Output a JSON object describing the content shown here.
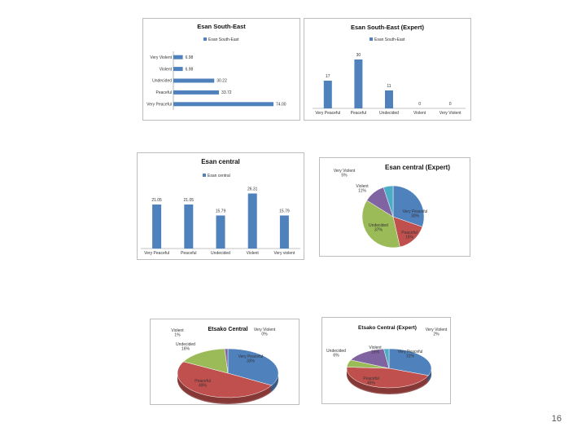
{
  "page_number": "16",
  "colors": {
    "blue": "#4f81bd",
    "red": "#c0504d",
    "green": "#9bbb59",
    "purple": "#8064a2",
    "teal": "#4bacc6"
  },
  "chart_data": [
    {
      "type": "bar",
      "orientation": "horizontal",
      "title": "Esan South-East",
      "legend": [
        "Esan South-East"
      ],
      "legend_position": "top",
      "categories": [
        "Very Violent",
        "Violent",
        "Undecided",
        "Peaceful",
        "Very Peaceful"
      ],
      "values": [
        6.98,
        6.98,
        30.22,
        33.72,
        74.0
      ],
      "labels": [
        "6.98",
        "6.98",
        "30.22",
        "33.72",
        "74.00"
      ],
      "xlim": [
        0,
        80
      ]
    },
    {
      "type": "bar",
      "title": "Esan South-East (Expert)",
      "legend": [
        "Esan South-East"
      ],
      "legend_position": "top",
      "categories": [
        "Very Peaceful",
        "Peaceful",
        "Undecided",
        "Violent",
        "Very Violent"
      ],
      "values": [
        17,
        30,
        11,
        0,
        0
      ],
      "labels": [
        "17",
        "30",
        "11",
        "0",
        "0"
      ],
      "ylim": [
        0,
        35
      ]
    },
    {
      "type": "bar",
      "title": "Esan central",
      "legend": [
        "Esan central"
      ],
      "legend_position": "top",
      "categories": [
        "Very Peaceful",
        "Peaceful",
        "Undecided",
        "Violent",
        "Very violent"
      ],
      "values": [
        21.05,
        21.05,
        15.79,
        26.31,
        15.79
      ],
      "labels": [
        "21.05",
        "21.05",
        "15.79",
        "26.31",
        "15.79"
      ],
      "ylim": [
        0,
        30
      ]
    },
    {
      "type": "pie",
      "title": "Esan central (Expert)",
      "categories": [
        "Very Peaceful",
        "Peaceful",
        "Undecided",
        "Violent",
        "Very Violent"
      ],
      "labels": [
        "Very Peaceful\n30%",
        "Peaceful\n16%",
        "Undecided\n37%",
        "Violent\n11%",
        "Very Violent\n5%"
      ],
      "values": [
        30,
        16,
        37,
        11,
        5
      ]
    },
    {
      "type": "pie",
      "title": "Etsako Central",
      "categories": [
        "Very Peaceful",
        "Peaceful",
        "Undecided",
        "Violent",
        "Very Violent"
      ],
      "labels": [
        "Very Peaceful\n33%",
        "Peaceful\n49%",
        "Undecided\n16%",
        "Violent\n1%",
        "Very Violent\n0%"
      ],
      "values": [
        33,
        49,
        16,
        1,
        0
      ]
    },
    {
      "type": "pie",
      "title": "Etsako Central (Expert)",
      "categories": [
        "Very Peaceful",
        "Peaceful",
        "Undecided",
        "Violent",
        "Very Violent"
      ],
      "labels": [
        "Very Peaceful\n31%",
        "Peaceful\n45%",
        "Undecided\n6%",
        "Violent\n16%",
        "Very Violent\n2%"
      ],
      "values": [
        31,
        45,
        6,
        16,
        2
      ]
    }
  ]
}
